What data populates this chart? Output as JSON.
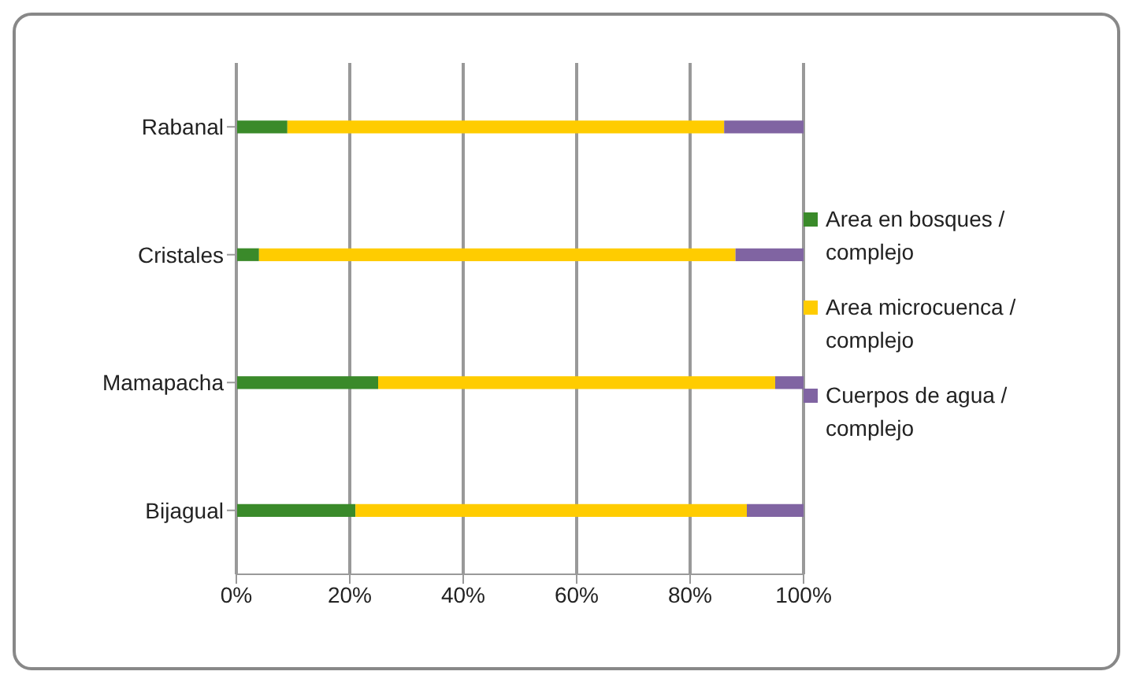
{
  "chart_data": {
    "type": "bar",
    "orientation": "horizontal",
    "stacked": true,
    "categories": [
      "Rabanal",
      "Cristales",
      "Mamapacha",
      "Bijagual"
    ],
    "series": [
      {
        "name": "Area en bosques / complejo",
        "color": "#3a8a2a",
        "values": [
          9,
          4,
          25,
          21
        ]
      },
      {
        "name": "Area microcuenca / complejo",
        "color": "#ffcc00",
        "values": [
          77,
          84,
          70,
          69
        ]
      },
      {
        "name": "Cuerpos de agua / complejo",
        "color": "#8064a2",
        "values": [
          14,
          12,
          5,
          10
        ]
      }
    ],
    "xlim": [
      0,
      100
    ],
    "xticks": [
      {
        "value": 0,
        "label": "0%"
      },
      {
        "value": 20,
        "label": "20%"
      },
      {
        "value": 40,
        "label": "40%"
      },
      {
        "value": 60,
        "label": "60%"
      },
      {
        "value": 80,
        "label": "80%"
      },
      {
        "value": 100,
        "label": "100%"
      }
    ],
    "grid": "x",
    "legend": "right"
  }
}
